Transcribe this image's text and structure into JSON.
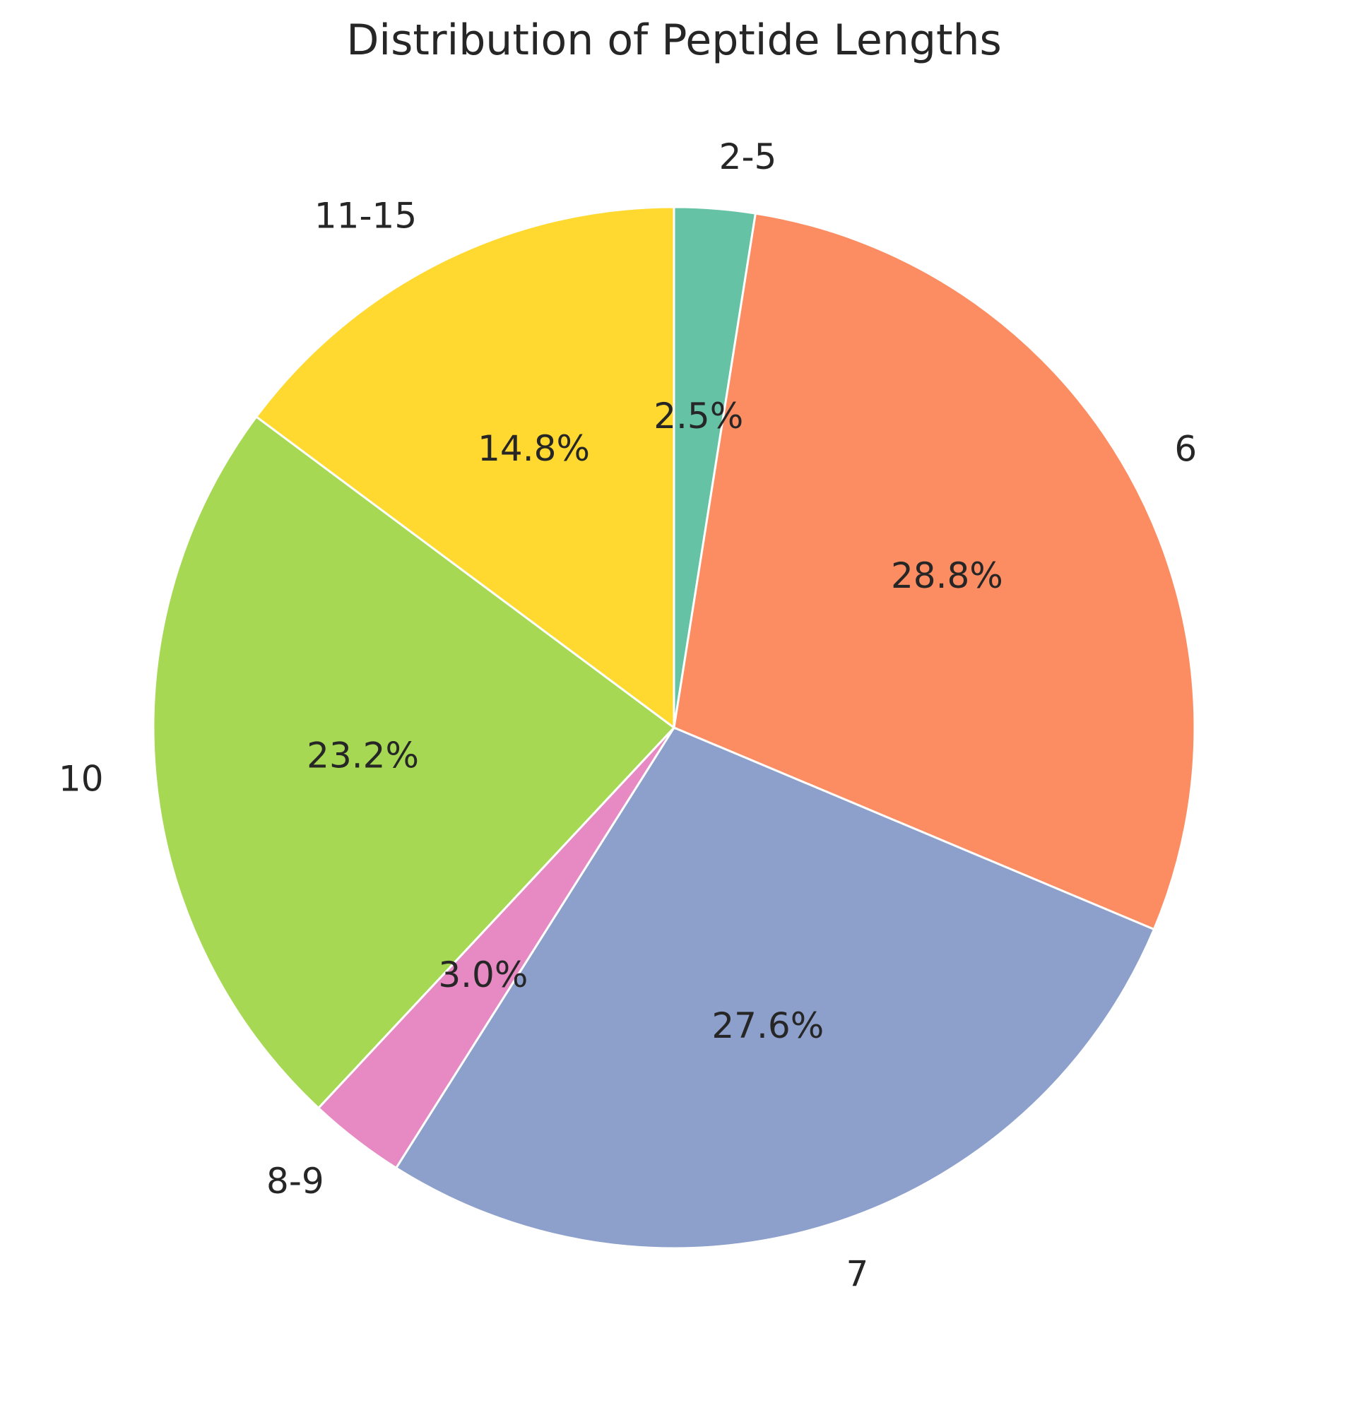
{
  "chart_data": {
    "type": "pie",
    "title": "Distribution of Peptide Lengths",
    "categories": [
      "2-5",
      "6",
      "7",
      "8-9",
      "10",
      "11-15"
    ],
    "values": [
      2.5,
      28.8,
      27.6,
      3.0,
      23.2,
      14.8
    ],
    "percent_labels": [
      "2.5%",
      "28.8%",
      "27.6%",
      "3.0%",
      "23.2%",
      "14.8%"
    ],
    "colors": [
      "#66c2a5",
      "#fc8d62",
      "#8da0cb",
      "#e78ac3",
      "#a6d854",
      "#ffd92f"
    ],
    "start_angle_deg": 90,
    "direction": "clockwise",
    "legend": "none"
  }
}
